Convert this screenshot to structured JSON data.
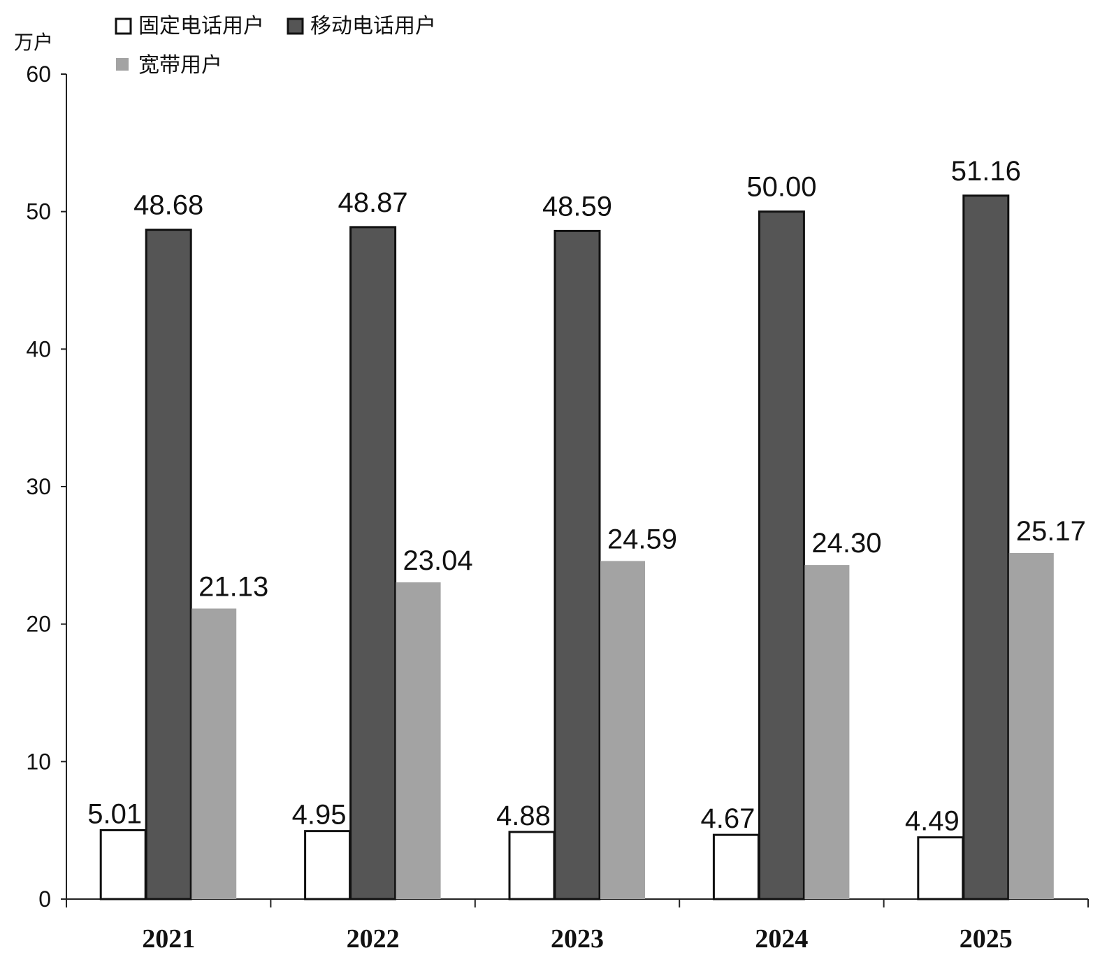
{
  "chart_data": {
    "type": "bar",
    "ylabel": "万户",
    "ylim": [
      0,
      60
    ],
    "yticks": [
      0,
      10,
      20,
      30,
      40,
      50,
      60
    ],
    "categories": [
      "2021",
      "2022",
      "2023",
      "2024",
      "2025"
    ],
    "legend_position": "top-left",
    "grid": false,
    "series": [
      {
        "name": "固定电话用户",
        "values": [
          5.01,
          4.95,
          4.88,
          4.67,
          4.49
        ],
        "labels": [
          "5.01",
          "4.95",
          "4.88",
          "4.67",
          "4.49"
        ],
        "color": "#ffffff"
      },
      {
        "name": "移动电话用户",
        "values": [
          48.68,
          48.87,
          48.59,
          50.0,
          51.16
        ],
        "labels": [
          "48.68",
          "48.87",
          "48.59",
          "50.00",
          "51.16"
        ],
        "color": "#555555"
      },
      {
        "name": "宽带用户",
        "values": [
          21.13,
          23.04,
          24.59,
          24.3,
          25.17
        ],
        "labels": [
          "21.13",
          "23.04",
          "24.59",
          "24.30",
          "25.17"
        ],
        "color": "#a3a3a3"
      }
    ]
  }
}
